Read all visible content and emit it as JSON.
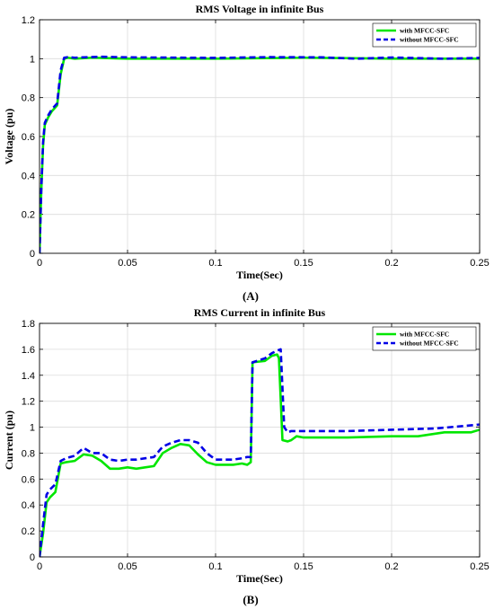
{
  "chart_data": [
    {
      "type": "line",
      "title": "RMS Voltage in infinite Bus",
      "xlabel": "Time(Sec)",
      "ylabel": "Voltage (pu)",
      "panel_label": "(A)",
      "xlim": [
        0,
        0.25
      ],
      "ylim": [
        0,
        1.2
      ],
      "x_ticks": [
        "0",
        "0.05",
        "0.1",
        "0.15",
        "0.2",
        "0.25"
      ],
      "y_ticks": [
        "0",
        "0.2",
        "0.4",
        "0.6",
        "0.8",
        "1",
        "1.2"
      ],
      "grid": true,
      "legend_placement": "top-right",
      "series": [
        {
          "name": "with MFCC-SFC",
          "color": "#00e600",
          "style": "solid",
          "x": [
            0,
            0.001,
            0.002,
            0.003,
            0.005,
            0.007,
            0.01,
            0.012,
            0.014,
            0.016,
            0.02,
            0.03,
            0.05,
            0.1,
            0.15,
            0.2,
            0.25
          ],
          "y": [
            0,
            0.32,
            0.55,
            0.66,
            0.7,
            0.73,
            0.76,
            0.92,
            1.0,
            1.005,
            1.0,
            1.005,
            1.0,
            1.0,
            1.005,
            1.0,
            1.0
          ]
        },
        {
          "name": "without MFCC-SFC",
          "color": "#0000e6",
          "style": "dashed",
          "x": [
            0,
            0.001,
            0.002,
            0.003,
            0.005,
            0.007,
            0.01,
            0.012,
            0.014,
            0.016,
            0.02,
            0.035,
            0.05,
            0.1,
            0.13,
            0.16,
            0.18,
            0.2,
            0.23,
            0.25
          ],
          "y": [
            0,
            0.33,
            0.57,
            0.67,
            0.71,
            0.74,
            0.77,
            0.94,
            1.005,
            1.008,
            1.005,
            1.01,
            1.007,
            1.004,
            1.008,
            1.007,
            1.0,
            1.006,
            1.0,
            1.004
          ]
        }
      ]
    },
    {
      "type": "line",
      "title": "RMS Current in infinite Bus",
      "xlabel": "Time(Sec)",
      "ylabel": "Current (pu)",
      "panel_label": "(B)",
      "xlim": [
        0,
        0.25
      ],
      "ylim": [
        0,
        1.8
      ],
      "x_ticks": [
        "0",
        "0.05",
        "0.1",
        "0.15",
        "0.2",
        "0.25"
      ],
      "y_ticks": [
        "0",
        "0.2",
        "0.4",
        "0.6",
        "0.8",
        "1",
        "1.2",
        "1.4",
        "1.6",
        "1.8"
      ],
      "grid": true,
      "legend_placement": "top-right",
      "series": [
        {
          "name": "with MFCC-SFC",
          "color": "#00e600",
          "style": "solid",
          "x": [
            0,
            0.002,
            0.004,
            0.006,
            0.009,
            0.012,
            0.015,
            0.02,
            0.025,
            0.03,
            0.035,
            0.04,
            0.045,
            0.05,
            0.055,
            0.06,
            0.065,
            0.07,
            0.075,
            0.08,
            0.085,
            0.09,
            0.095,
            0.1,
            0.11,
            0.115,
            0.118,
            0.12,
            0.121,
            0.128,
            0.132,
            0.135,
            0.136,
            0.138,
            0.141,
            0.143,
            0.146,
            0.15,
            0.175,
            0.2,
            0.215,
            0.23,
            0.245,
            0.25
          ],
          "y": [
            0,
            0.18,
            0.42,
            0.46,
            0.5,
            0.72,
            0.73,
            0.74,
            0.79,
            0.78,
            0.74,
            0.68,
            0.68,
            0.69,
            0.68,
            0.69,
            0.7,
            0.8,
            0.84,
            0.87,
            0.86,
            0.79,
            0.73,
            0.71,
            0.71,
            0.72,
            0.71,
            0.73,
            1.5,
            1.51,
            1.55,
            1.56,
            1.53,
            0.9,
            0.89,
            0.9,
            0.93,
            0.92,
            0.92,
            0.93,
            0.93,
            0.96,
            0.96,
            0.98
          ]
        },
        {
          "name": "without MFCC-SFC",
          "color": "#0000e6",
          "style": "dashed",
          "x": [
            0,
            0.002,
            0.004,
            0.006,
            0.009,
            0.012,
            0.015,
            0.02,
            0.025,
            0.03,
            0.035,
            0.04,
            0.045,
            0.05,
            0.055,
            0.06,
            0.065,
            0.07,
            0.075,
            0.08,
            0.085,
            0.09,
            0.095,
            0.1,
            0.11,
            0.115,
            0.118,
            0.12,
            0.121,
            0.128,
            0.132,
            0.135,
            0.137,
            0.139,
            0.141,
            0.143,
            0.15,
            0.175,
            0.2,
            0.225,
            0.25
          ],
          "y": [
            0,
            0.25,
            0.48,
            0.52,
            0.56,
            0.74,
            0.76,
            0.78,
            0.84,
            0.8,
            0.8,
            0.75,
            0.74,
            0.75,
            0.75,
            0.76,
            0.77,
            0.85,
            0.88,
            0.9,
            0.9,
            0.88,
            0.8,
            0.75,
            0.75,
            0.76,
            0.77,
            0.77,
            1.5,
            1.53,
            1.57,
            1.59,
            1.6,
            1.0,
            0.96,
            0.97,
            0.97,
            0.97,
            0.98,
            0.99,
            1.02
          ]
        }
      ]
    }
  ]
}
